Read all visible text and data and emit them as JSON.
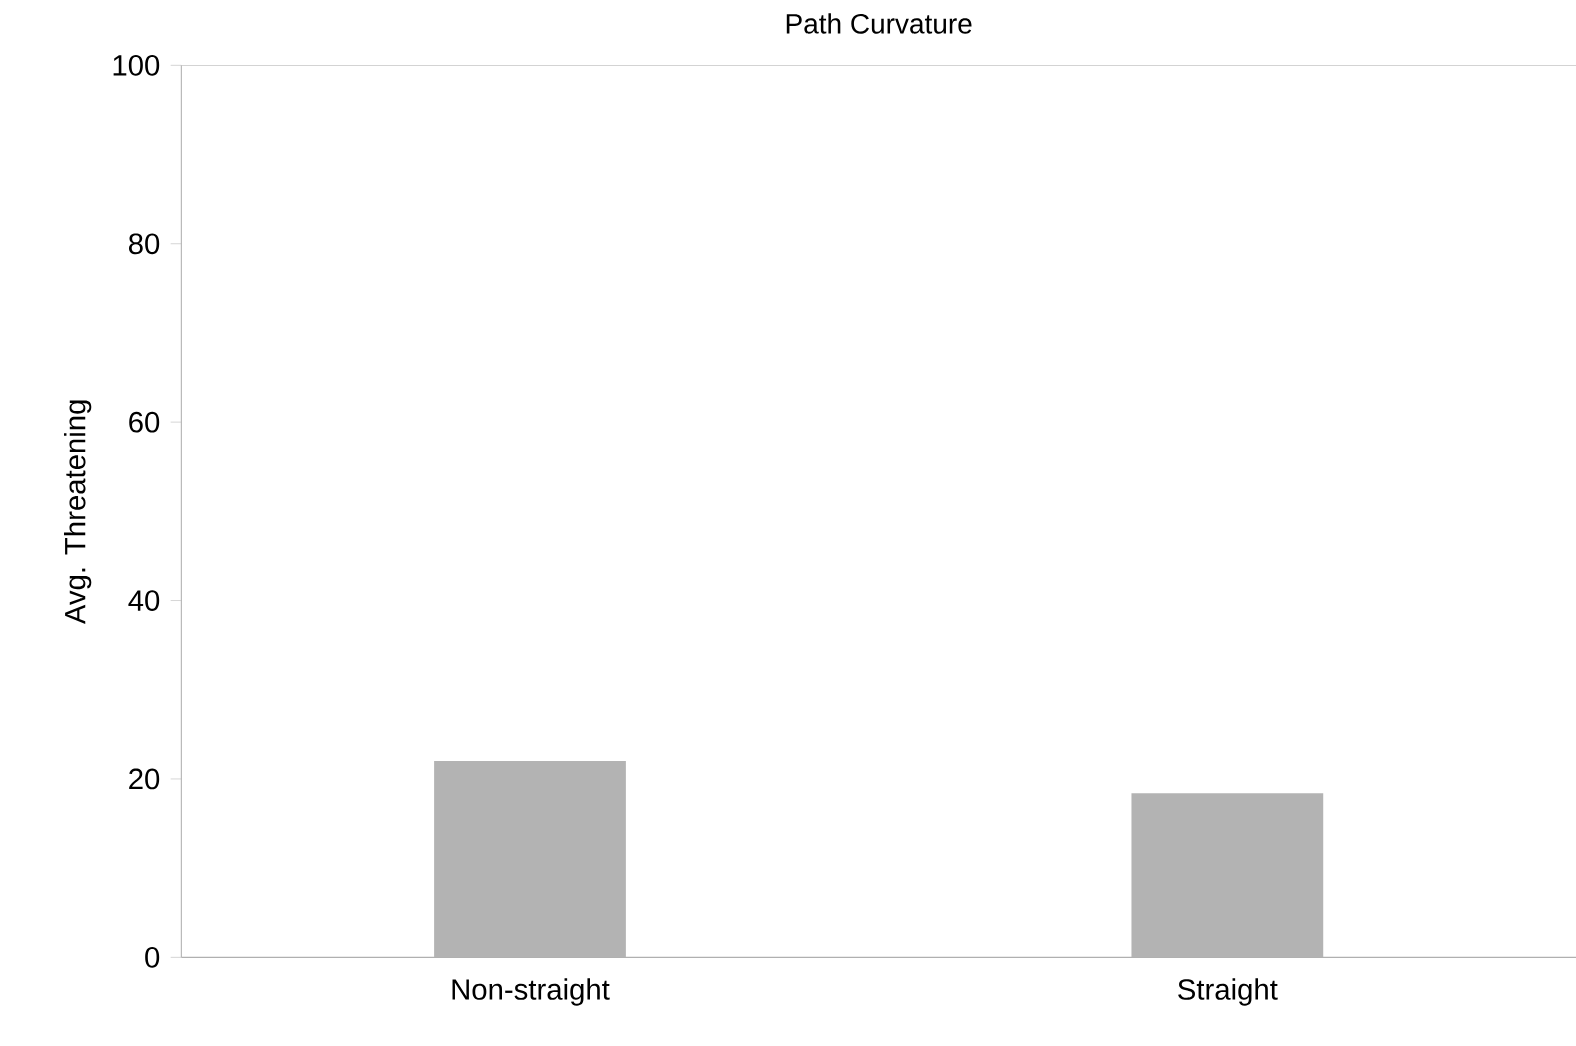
{
  "chart_data": {
    "type": "bar",
    "title": "Path Curvature",
    "ylabel": "Avg. Threatening",
    "categories": [
      "Non-straight",
      "Straight"
    ],
    "values": [
      22,
      18.4
    ],
    "color": "#b3b3b3",
    "ylim": [
      0,
      100
    ],
    "yticks": [
      0,
      20,
      40,
      60,
      80,
      100
    ],
    "grid": false
  }
}
